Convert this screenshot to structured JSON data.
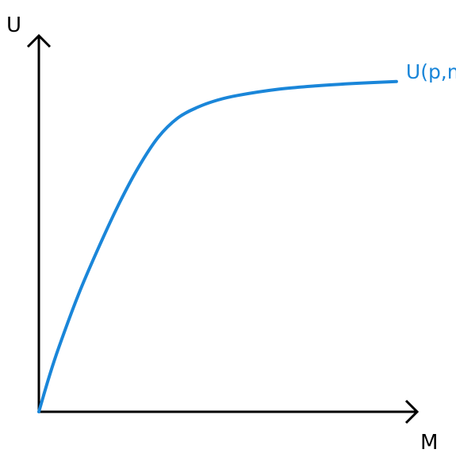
{
  "chart_data": {
    "type": "line",
    "title": "",
    "xlabel": "M",
    "ylabel": "U",
    "xlim": [
      0,
      10
    ],
    "ylim": [
      0,
      10
    ],
    "grid": false,
    "ticks": false,
    "series": [
      {
        "name": "U(p,m)",
        "color": "#1a86d9",
        "x": [
          0,
          0.25,
          0.5,
          1.0,
          1.5,
          2.0,
          2.5,
          3.0,
          3.5,
          4.0,
          4.5,
          5.0,
          6.0,
          7.0,
          8.0,
          9.0
        ],
        "y": [
          0,
          0.95,
          1.8,
          3.3,
          4.6,
          5.8,
          6.85,
          7.7,
          8.25,
          8.55,
          8.75,
          8.88,
          9.05,
          9.15,
          9.22,
          9.27
        ]
      }
    ],
    "colors": {
      "axis": "#000000",
      "curve": "#1a86d9"
    }
  }
}
